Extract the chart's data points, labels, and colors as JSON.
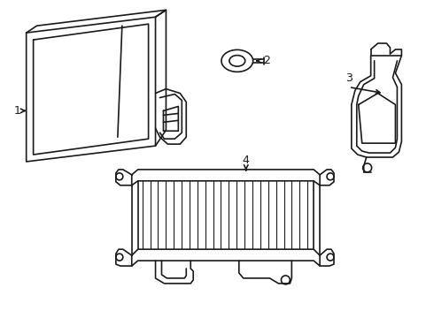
{
  "background_color": "#ffffff",
  "line_color": "#1a1a1a",
  "line_width": 1.2,
  "fig_width": 4.9,
  "fig_height": 3.6,
  "dpi": 100
}
